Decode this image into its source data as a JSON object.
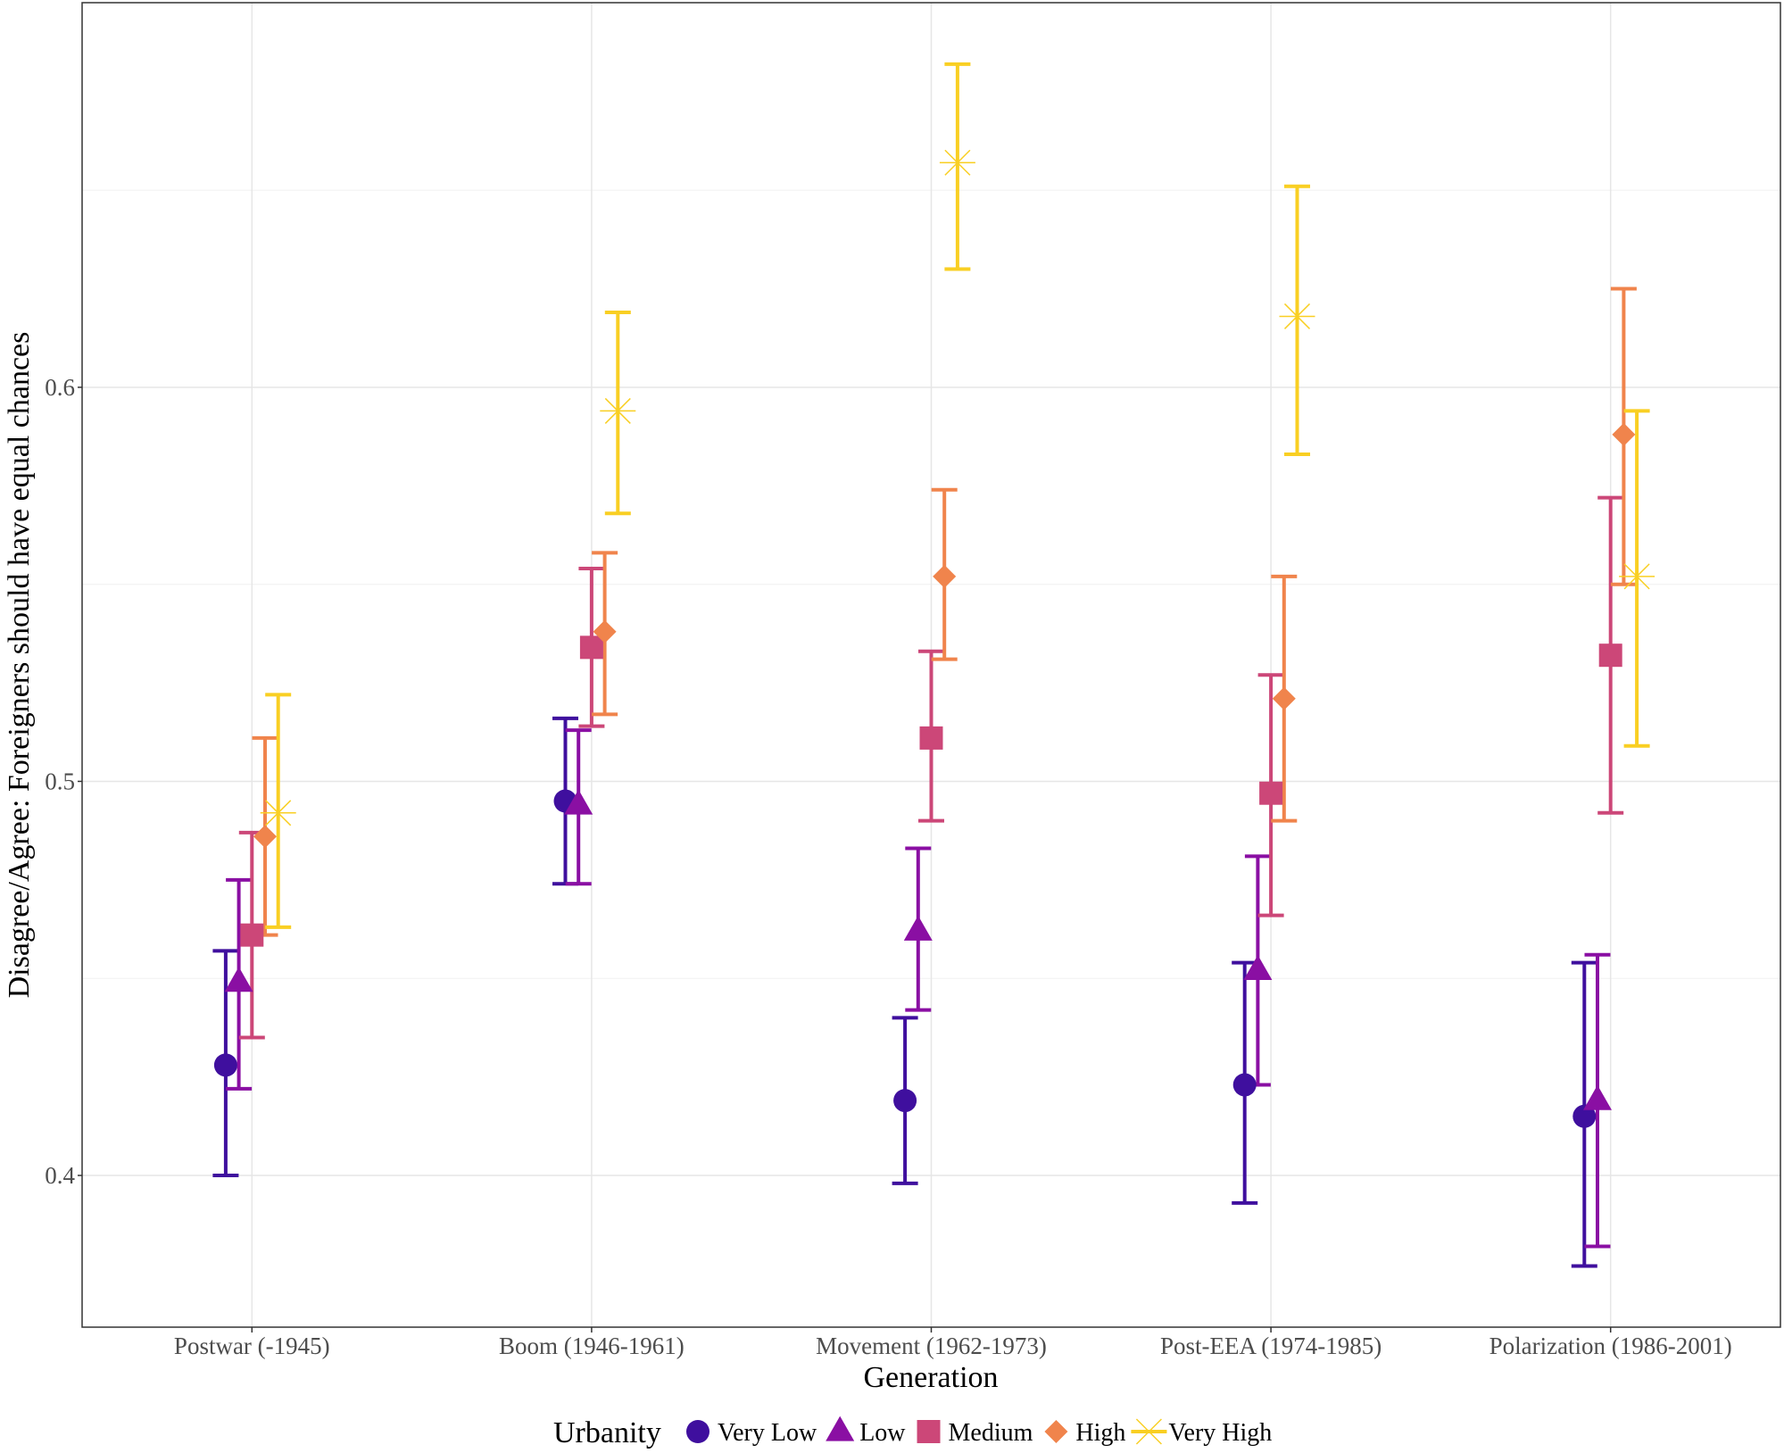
{
  "chart_data": {
    "type": "scatter",
    "subtype": "dodged point estimates with error bars",
    "title": "",
    "xlabel": "Generation",
    "ylabel": "Disagree/Agree: Foreigners should have equal chances",
    "categories": [
      "Postwar (-1945)",
      "Boom (1946-1961)",
      "Movement (1962-1973)",
      "Post-EEA (1974-1985)",
      "Polarization (1986-2001)"
    ],
    "ylim": [
      0.3615,
      0.6976
    ],
    "yticks": [
      0.4,
      0.5,
      0.6
    ],
    "ytick_labels": [
      "0.4",
      "0.5",
      "0.6"
    ],
    "grid": true,
    "legend": {
      "title": "Urbanity",
      "position": "bottom"
    },
    "series": [
      {
        "name": "Very Low",
        "color": "#3f0f9e",
        "shape": "circle",
        "values": [
          0.428,
          0.495,
          0.419,
          0.423,
          0.415
        ],
        "lower": [
          0.4,
          0.474,
          0.398,
          0.393,
          0.377
        ],
        "upper": [
          0.457,
          0.516,
          0.44,
          0.454,
          0.454
        ]
      },
      {
        "name": "Low",
        "color": "#8a0fa3",
        "shape": "triangle",
        "values": [
          0.449,
          0.494,
          0.462,
          0.452,
          0.419
        ],
        "lower": [
          0.422,
          0.474,
          0.442,
          0.423,
          0.382
        ],
        "upper": [
          0.475,
          0.513,
          0.483,
          0.481,
          0.456
        ]
      },
      {
        "name": "Medium",
        "color": "#cc4778",
        "shape": "square",
        "values": [
          0.461,
          0.534,
          0.511,
          0.497,
          0.532
        ],
        "lower": [
          0.435,
          0.514,
          0.49,
          0.466,
          0.492
        ],
        "upper": [
          0.487,
          0.554,
          0.533,
          0.527,
          0.572
        ]
      },
      {
        "name": "High",
        "color": "#f0844c",
        "shape": "diamond",
        "values": [
          0.486,
          0.538,
          0.552,
          0.521,
          0.588
        ],
        "lower": [
          0.461,
          0.517,
          0.531,
          0.49,
          0.55
        ],
        "upper": [
          0.511,
          0.558,
          0.574,
          0.552,
          0.625
        ]
      },
      {
        "name": "Very High",
        "color": "#f9cf23",
        "shape": "asterisk",
        "values": [
          0.492,
          0.594,
          0.657,
          0.618,
          0.552
        ],
        "lower": [
          0.463,
          0.568,
          0.63,
          0.583,
          0.509
        ],
        "upper": [
          0.522,
          0.619,
          0.682,
          0.651,
          0.594
        ]
      }
    ]
  }
}
